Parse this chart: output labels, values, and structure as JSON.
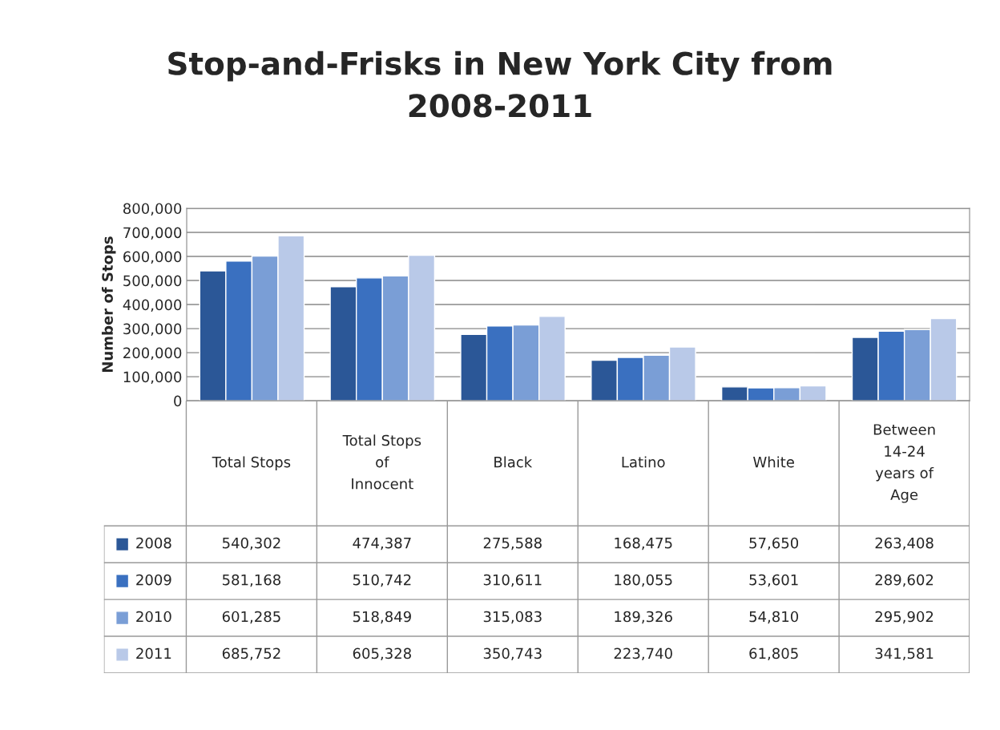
{
  "chart_data": {
    "type": "bar",
    "title": "Stop-and-Frisks in New York City from\n2008-2011",
    "ylabel": "Number of Stops",
    "categories": [
      "Total Stops",
      "Total Stops\nof\nInnocent",
      "Black",
      "Latino",
      "White",
      "Between\n14-24\nyears of\nAge"
    ],
    "series": [
      {
        "name": "2008",
        "color": "#2b5797",
        "values": [
          540302,
          474387,
          275588,
          168475,
          57650,
          263408
        ],
        "value_labels": [
          "540,302",
          "474,387",
          "275,588",
          "168,475",
          "57,650",
          "263,408"
        ]
      },
      {
        "name": "2009",
        "color": "#3a70c0",
        "values": [
          581168,
          510742,
          310611,
          180055,
          53601,
          289602
        ],
        "value_labels": [
          "581,168",
          "510,742",
          "310,611",
          "180,055",
          "53,601",
          "289,602"
        ]
      },
      {
        "name": "2010",
        "color": "#7a9ed6",
        "values": [
          601285,
          518849,
          315083,
          189326,
          54810,
          295902
        ],
        "value_labels": [
          "601,285",
          "518,849",
          "315,083",
          "189,326",
          "54,810",
          "295,902"
        ]
      },
      {
        "name": "2011",
        "color": "#b9c9e8",
        "values": [
          685752,
          605328,
          350743,
          223740,
          61805,
          341581
        ],
        "value_labels": [
          "685,752",
          "605,328",
          "350,743",
          "223,740",
          "61,805",
          "341,581"
        ]
      }
    ],
    "ylim": [
      0,
      800000
    ],
    "yticks": [
      0,
      {
        "value": 100000,
        "label": "100,000"
      },
      {
        "value": 200000,
        "label": "200,000"
      },
      {
        "value": 300000,
        "label": "300,000"
      },
      {
        "value": 400000,
        "label": "400,000"
      },
      {
        "value": 500000,
        "label": "500,000"
      },
      {
        "value": 600000,
        "label": "600,000"
      },
      {
        "value": 700000,
        "label": "700,000"
      },
      {
        "value": 800000,
        "label": "800,000"
      }
    ],
    "grid": "y",
    "legend": "bottom left"
  }
}
